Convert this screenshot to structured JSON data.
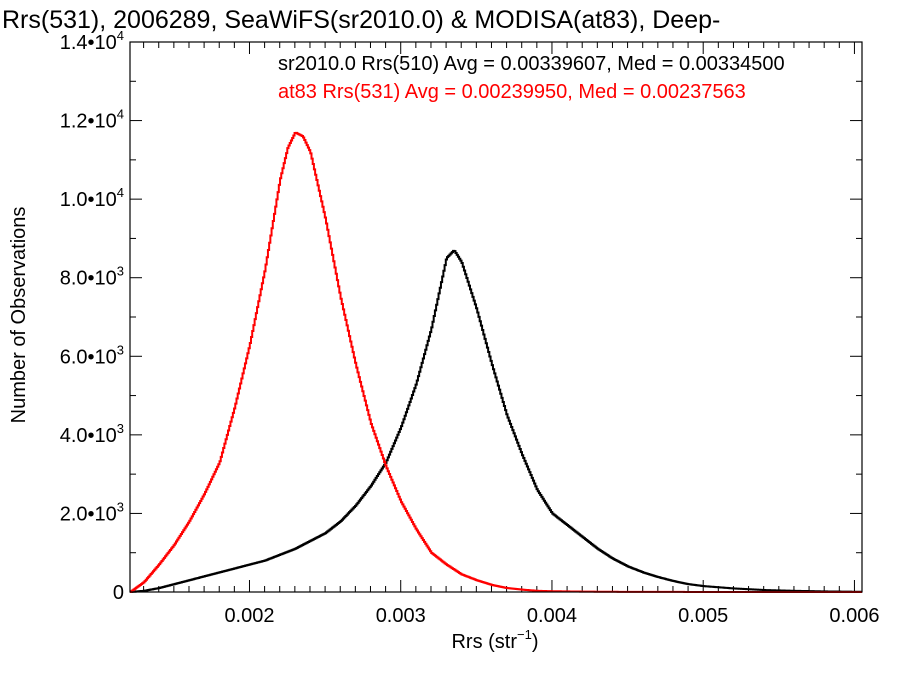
{
  "chart_data": {
    "type": "line",
    "title": "Rrs(531), 2006289, SeaWiFS(sr2010.0) & MODISA(at83), Deep-",
    "xlabel": "Rrs (str",
    "xlabel_sup": "−1",
    "xlabel_close": ")",
    "ylabel": "Number of Observations",
    "xlim": [
      0.00121,
      0.00605
    ],
    "ylim": [
      0,
      14000
    ],
    "x_ticks": [
      {
        "value": 0.002,
        "label": "0.002"
      },
      {
        "value": 0.003,
        "label": "0.003"
      },
      {
        "value": 0.004,
        "label": "0.004"
      },
      {
        "value": 0.005,
        "label": "0.005"
      },
      {
        "value": 0.006,
        "label": "0.006"
      }
    ],
    "y_ticks": [
      {
        "value": 0,
        "label": "0",
        "sup": ""
      },
      {
        "value": 2000,
        "label": "2.0•10",
        "sup": "3"
      },
      {
        "value": 4000,
        "label": "4.0•10",
        "sup": "3"
      },
      {
        "value": 6000,
        "label": "6.0•10",
        "sup": "3"
      },
      {
        "value": 8000,
        "label": "8.0•10",
        "sup": "3"
      },
      {
        "value": 10000,
        "label": "1.0•10",
        "sup": "4"
      },
      {
        "value": 12000,
        "label": "1.2•10",
        "sup": "4"
      },
      {
        "value": 14000,
        "label": "1.4•10",
        "sup": "4"
      }
    ],
    "annotations": [
      {
        "text": "sr2010.0 Rrs(510) Avg = 0.00339607, Med = 0.00334500",
        "color": "#000000"
      },
      {
        "text": "at83 Rrs(531) Avg = 0.00239950, Med = 0.00237563",
        "color": "#ff0000"
      }
    ],
    "series": [
      {
        "color": "#000000",
        "x": [
          0.00121,
          0.0013,
          0.0014,
          0.0015,
          0.0016,
          0.0017,
          0.0018,
          0.0019,
          0.002,
          0.0021,
          0.0022,
          0.0023,
          0.0024,
          0.0025,
          0.0026,
          0.0027,
          0.0028,
          0.0029,
          0.003,
          0.0031,
          0.0032,
          0.00325,
          0.0033,
          0.00335,
          0.0034,
          0.0035,
          0.0036,
          0.0037,
          0.0038,
          0.0039,
          0.004,
          0.0041,
          0.0042,
          0.0043,
          0.0044,
          0.0045,
          0.0046,
          0.0047,
          0.0048,
          0.0049,
          0.005,
          0.0052,
          0.0054,
          0.0056,
          0.0058,
          0.00605
        ],
        "values": [
          0,
          30,
          100,
          200,
          300,
          400,
          500,
          600,
          700,
          800,
          950,
          1100,
          1300,
          1500,
          1800,
          2200,
          2700,
          3300,
          4200,
          5300,
          6700,
          7600,
          8500,
          8700,
          8400,
          7200,
          5800,
          4500,
          3500,
          2600,
          2000,
          1700,
          1400,
          1100,
          850,
          650,
          500,
          380,
          280,
          200,
          150,
          90,
          50,
          30,
          15,
          5
        ]
      },
      {
        "color": "#ff0000",
        "x": [
          0.00121,
          0.0013,
          0.0014,
          0.0015,
          0.0016,
          0.0017,
          0.0018,
          0.0019,
          0.002,
          0.0021,
          0.0022,
          0.00225,
          0.0023,
          0.00235,
          0.0024,
          0.0025,
          0.0026,
          0.0027,
          0.0028,
          0.0029,
          0.003,
          0.0031,
          0.0032,
          0.0033,
          0.0034,
          0.0035,
          0.0036,
          0.0037,
          0.0038,
          0.0039,
          0.004,
          0.0042,
          0.0044,
          0.0046,
          0.0048,
          0.005,
          0.0055,
          0.00605
        ],
        "values": [
          0,
          250,
          700,
          1200,
          1800,
          2500,
          3300,
          4700,
          6300,
          8200,
          10500,
          11300,
          11700,
          11600,
          11200,
          9500,
          7500,
          5800,
          4300,
          3200,
          2300,
          1600,
          1000,
          700,
          450,
          300,
          180,
          100,
          60,
          30,
          20,
          10,
          5,
          3,
          2,
          1,
          0,
          0
        ]
      }
    ]
  }
}
